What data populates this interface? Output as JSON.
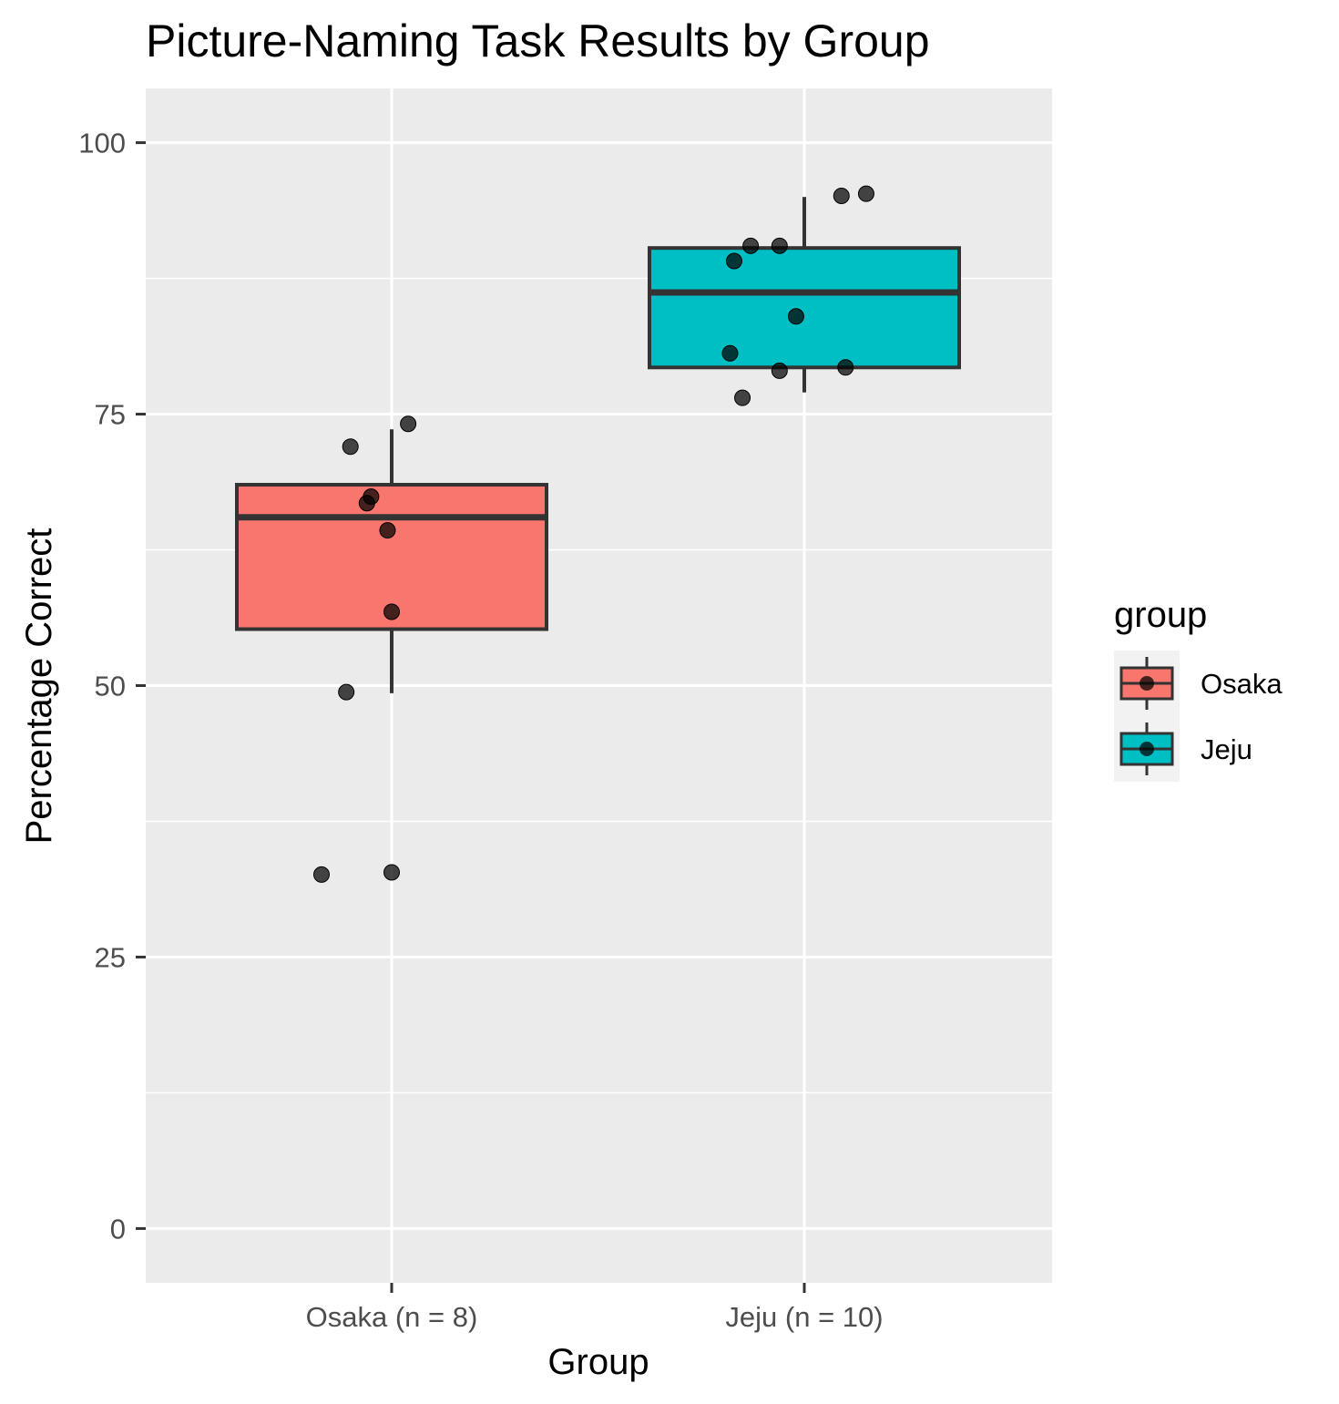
{
  "chart_data": {
    "type": "boxplot",
    "title": "Picture-Naming Task Results by Group",
    "xlabel": "Group",
    "ylabel": "Percentage Correct",
    "ylim": [
      -5,
      105
    ],
    "yticks": [
      0,
      25,
      50,
      75,
      100
    ],
    "minor_yticks": [
      12.5,
      37.5,
      62.5,
      87.5
    ],
    "grid": true,
    "categories": [
      "Osaka (n = 8)",
      "Jeju (n = 10)"
    ],
    "legend": {
      "title": "group",
      "position": "right",
      "entries": [
        {
          "label": "Osaka",
          "color": "#F8766D"
        },
        {
          "label": "Jeju",
          "color": "#00BFC4"
        }
      ]
    },
    "boxes": [
      {
        "group": "Osaka",
        "color": "#F8766D",
        "whisker_low": 49.3,
        "q1": 55.2,
        "median": 65.5,
        "q3": 68.5,
        "whisker_high": 73.6,
        "points": [
          {
            "offset": 0.04,
            "y": 74.1
          },
          {
            "offset": -0.1,
            "y": 72.0
          },
          {
            "offset": -0.05,
            "y": 67.4
          },
          {
            "offset": -0.06,
            "y": 66.8
          },
          {
            "offset": -0.01,
            "y": 64.3
          },
          {
            "offset": 0.0,
            "y": 56.8
          },
          {
            "offset": -0.11,
            "y": 49.4
          },
          {
            "offset": -0.17,
            "y": 32.6
          },
          {
            "offset": 0.0,
            "y": 32.8
          }
        ]
      },
      {
        "group": "Jeju",
        "color": "#00BFC4",
        "whisker_low": 77.0,
        "q1": 79.3,
        "median": 86.2,
        "q3": 90.3,
        "whisker_high": 95.0,
        "points": [
          {
            "offset": 0.15,
            "y": 95.3
          },
          {
            "offset": 0.09,
            "y": 95.1
          },
          {
            "offset": -0.13,
            "y": 90.5
          },
          {
            "offset": -0.06,
            "y": 90.5
          },
          {
            "offset": -0.17,
            "y": 89.1
          },
          {
            "offset": -0.02,
            "y": 84.0
          },
          {
            "offset": -0.18,
            "y": 80.6
          },
          {
            "offset": 0.1,
            "y": 79.3
          },
          {
            "offset": -0.06,
            "y": 79.0
          },
          {
            "offset": -0.15,
            "y": 76.5
          }
        ]
      }
    ],
    "colors": {
      "panel": "#EBEBEB",
      "grid": "#FFFFFF",
      "outline": "#333333",
      "point": "#000000",
      "tick": "#333333"
    }
  }
}
